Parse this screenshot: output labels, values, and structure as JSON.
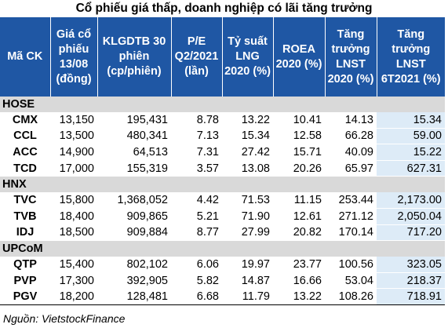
{
  "title": "Cổ phiếu giá thấp, doanh nghiệp có lãi tăng trưởng",
  "headers": [
    "Mã CK",
    "Giá cổ phiếu 13/08 (đồng)",
    "KLGDTB 30 phiên (cp/phiên)",
    "P/E Q2/2021 (lần)",
    "Tỷ suất LNG 2020 (%)",
    "ROEA 2020 (%)",
    "Tăng trưởng LNST 2020 (%)",
    "Tăng trưởng LNST 6T2021 (%)"
  ],
  "groups": [
    {
      "name": "HOSE",
      "rows": [
        [
          "CMX",
          "13,150",
          "195,431",
          "8.78",
          "13.22",
          "10.41",
          "14.13",
          "15.34"
        ],
        [
          "CCL",
          "13,500",
          "480,341",
          "7.13",
          "15.34",
          "12.58",
          "66.28",
          "59.00"
        ],
        [
          "ACC",
          "14,900",
          "64,513",
          "7.31",
          "27.42",
          "15.71",
          "40.09",
          "15.22"
        ],
        [
          "TCD",
          "17,000",
          "155,319",
          "3.57",
          "13.08",
          "20.26",
          "65.97",
          "627.31"
        ]
      ]
    },
    {
      "name": "HNX",
      "rows": [
        [
          "TVC",
          "15,800",
          "1,368,052",
          "4.42",
          "71.53",
          "11.15",
          "253.44",
          "2,173.00"
        ],
        [
          "TVB",
          "18,400",
          "909,865",
          "5.21",
          "71.90",
          "12.61",
          "271.12",
          "2,050.04"
        ],
        [
          "IDJ",
          "18,500",
          "909,884",
          "8.77",
          "27.99",
          "20.82",
          "170.14",
          "717.20"
        ]
      ]
    },
    {
      "name": "UPCoM",
      "rows": [
        [
          "QTP",
          "15,400",
          "802,102",
          "6.06",
          "19.97",
          "23.77",
          "100.56",
          "323.05"
        ],
        [
          "PVP",
          "17,300",
          "392,905",
          "5.82",
          "14.87",
          "16.66",
          "53.04",
          "218.37"
        ],
        [
          "PGV",
          "18,200",
          "128,481",
          "6.68",
          "11.79",
          "13.22",
          "108.26",
          "718.91"
        ]
      ]
    }
  ],
  "source": "Nguồn: VietstockFinance",
  "colors": {
    "header_bg": "#1f57a4",
    "header_text": "#ffffff",
    "group_bg": "#d9d9d9",
    "highlight_bg": "#ddebf7"
  }
}
